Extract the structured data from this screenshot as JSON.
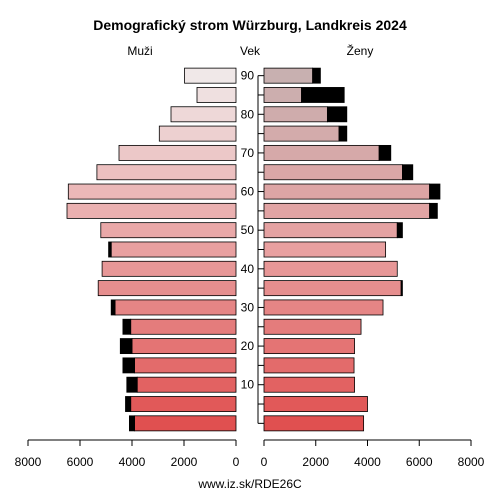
{
  "footer": "www.iz.sk/RDE26C",
  "chart_data": {
    "type": "bar",
    "subtype": "population-pyramid",
    "title": "Demografický strom Würzburg, Landkreis 2024",
    "left_label": "Muži",
    "center_label": "Vek",
    "right_label": "Ženy",
    "xlim": [
      0,
      8000
    ],
    "x_ticks": [
      8000,
      6000,
      4000,
      2000,
      0
    ],
    "age_ticks": [
      90,
      80,
      70,
      60,
      50,
      40,
      30,
      20,
      10
    ],
    "age_groups": [
      "0-4",
      "5-9",
      "10-14",
      "15-19",
      "20-24",
      "25-29",
      "30-34",
      "35-39",
      "40-44",
      "45-49",
      "50-54",
      "55-59",
      "60-64",
      "65-69",
      "70-74",
      "75-79",
      "80-84",
      "85-89",
      "90+"
    ],
    "series": [
      {
        "name": "Muži",
        "values": [
          3900,
          4050,
          3800,
          3900,
          4000,
          4050,
          4650,
          5300,
          5150,
          4800,
          5200,
          6500,
          6450,
          5350,
          4500,
          2950,
          2500,
          1500,
          1980
        ],
        "surplus": [
          200,
          200,
          400,
          450,
          450,
          300,
          150,
          0,
          0,
          100,
          0,
          0,
          0,
          0,
          0,
          0,
          0,
          0,
          0
        ]
      },
      {
        "name": "Ženy",
        "values": [
          3850,
          4000,
          3500,
          3480,
          3500,
          3750,
          4600,
          5300,
          5150,
          4700,
          5150,
          6400,
          6400,
          5350,
          4450,
          2900,
          2450,
          1450,
          1880
        ],
        "surplus": [
          0,
          0,
          0,
          0,
          0,
          0,
          0,
          50,
          0,
          0,
          200,
          300,
          400,
          400,
          450,
          300,
          750,
          1650,
          300
        ]
      }
    ],
    "top_bar_partial": {
      "male": 450,
      "female_light": 450,
      "female_dark": 450
    },
    "colors": {
      "young": "#e05050",
      "mid": "#e8a0a0",
      "old": "#f0e8e8",
      "female_old": "#c8b0b0",
      "surplus": "#000000"
    }
  }
}
